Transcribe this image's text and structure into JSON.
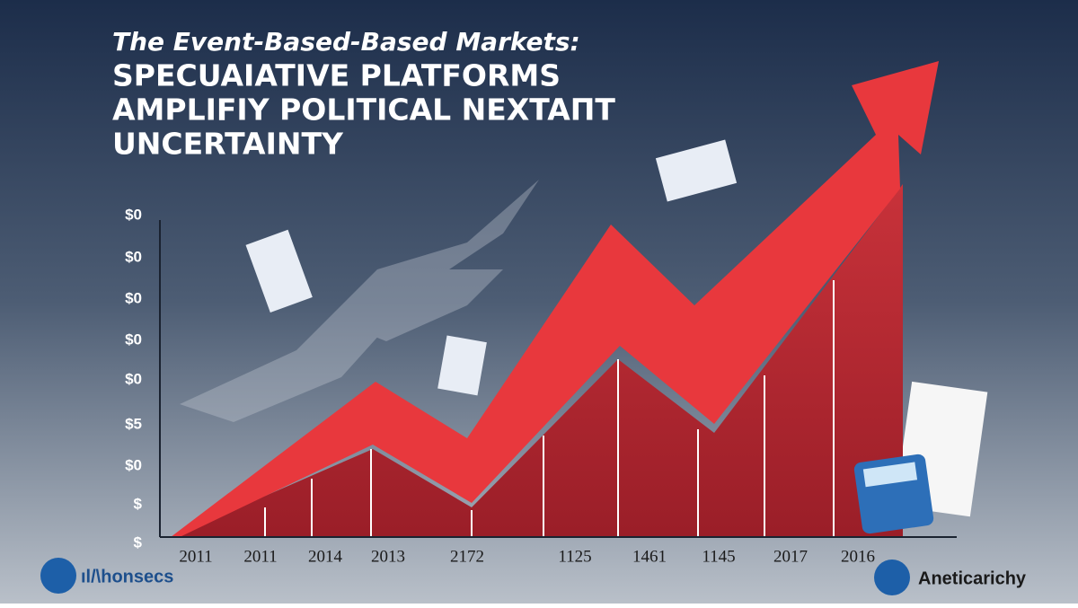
{
  "header": {
    "kicker": "The Event-Based-Based Markets:",
    "title_lines": [
      "SPECUAIATIVE PLATFORMS",
      "AMPLIFIY POLITICAL NEXTAПT",
      "UNCERTAINTY"
    ]
  },
  "y_axis_labels": [
    "$0",
    "$0",
    "$0",
    "$0",
    "$0",
    "$5",
    "$0",
    "$",
    "$"
  ],
  "x_axis_labels": [
    "2011",
    "2011",
    "2014",
    "2013",
    "2172",
    "1125",
    "1461",
    "1145",
    "2017",
    "2016"
  ],
  "footer": {
    "left_logo": "ıl/\\honsecs",
    "right_logo": "Aneticarichy"
  }
}
